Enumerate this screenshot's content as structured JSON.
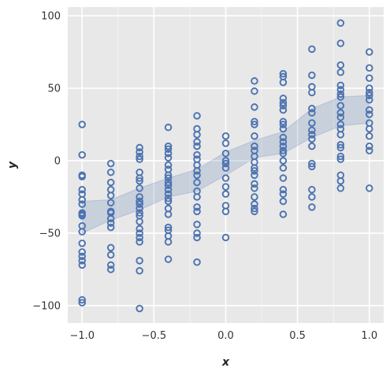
{
  "chart_data": {
    "type": "scatter",
    "title": "",
    "xlabel": "x",
    "ylabel": "y",
    "xlim": [
      -1.1,
      1.1
    ],
    "ylim": [
      -112,
      106
    ],
    "xticks": [
      -1.0,
      -0.5,
      0.0,
      0.5,
      1.0
    ],
    "xtick_labels": [
      "−1.0",
      "−0.5",
      "0.0",
      "0.5",
      "1.0"
    ],
    "yticks": [
      -100,
      -50,
      0,
      50,
      100
    ],
    "ytick_labels": [
      "−100",
      "−50",
      "0",
      "50",
      "100"
    ],
    "grid": true,
    "background": "#e8e8e8",
    "marker_color": "#4c72b0",
    "band_color": "#4c72b0",
    "series": [
      {
        "points": [
          {
            "x": -1.0,
            "ys": [
              25,
              4,
              -10,
              -11,
              -20,
              -23,
              -27,
              -30,
              -36,
              -37,
              -38,
              -45,
              -49,
              -57,
              -63,
              -66,
              -69,
              -72,
              -96,
              -98
            ]
          },
          {
            "x": -0.8,
            "ys": [
              -2,
              -8,
              -15,
              -20,
              -24,
              -29,
              -35,
              -36,
              -40,
              -43,
              -46,
              -60,
              -65,
              -72,
              -75
            ]
          },
          {
            "x": -0.6,
            "ys": [
              9,
              6,
              3,
              1,
              -8,
              -12,
              -14,
              -19,
              -25,
              -28,
              -30,
              -33,
              -36,
              -38,
              -42,
              -47,
              -50,
              -53,
              -56,
              -69,
              -76,
              -102
            ]
          },
          {
            "x": -0.4,
            "ys": [
              23,
              10,
              8,
              5,
              2,
              -3,
              -6,
              -10,
              -12,
              -15,
              -17,
              -20,
              -23,
              -26,
              -28,
              -33,
              -37,
              -46,
              -48,
              -52,
              -56,
              -68
            ]
          },
          {
            "x": -0.2,
            "ys": [
              31,
              22,
              18,
              13,
              10,
              4,
              1,
              -3,
              -7,
              -10,
              -15,
              -21,
              -25,
              -32,
              -35,
              -44,
              -50,
              -53,
              -70
            ]
          },
          {
            "x": 0.0,
            "ys": [
              17,
              12,
              5,
              0,
              -2,
              -5,
              -12,
              -18,
              -23,
              -31,
              -35,
              -53
            ]
          },
          {
            "x": 0.2,
            "ys": [
              55,
              48,
              37,
              27,
              25,
              17,
              10,
              7,
              3,
              -1,
              -5,
              -7,
              -10,
              -16,
              -19,
              -25,
              -30,
              -33,
              -35
            ]
          },
          {
            "x": 0.4,
            "ys": [
              60,
              58,
              54,
              43,
              40,
              38,
              35,
              27,
              25,
              22,
              16,
              13,
              10,
              7,
              5,
              0,
              -5,
              -12,
              -20,
              -23,
              -28,
              -37
            ]
          },
          {
            "x": 0.6,
            "ys": [
              77,
              59,
              51,
              47,
              36,
              33,
              26,
              21,
              18,
              15,
              10,
              -2,
              -4,
              -20,
              -25,
              -32
            ]
          },
          {
            "x": 0.8,
            "ys": [
              95,
              81,
              66,
              61,
              52,
              49,
              46,
              44,
              38,
              33,
              30,
              25,
              22,
              18,
              11,
              9,
              3,
              1,
              -10,
              -14,
              -19
            ]
          },
          {
            "x": 1.0,
            "ys": [
              75,
              64,
              57,
              50,
              47,
              45,
              42,
              35,
              32,
              26,
              22,
              17,
              10,
              7,
              -19
            ]
          }
        ]
      }
    ],
    "confidence_band": {
      "x": [
        -1.0,
        -0.8,
        -0.6,
        -0.4,
        -0.2,
        0.0,
        0.2,
        0.4,
        0.6,
        0.8,
        1.0
      ],
      "lower": [
        -50,
        -41,
        -34,
        -25,
        -21,
        -10,
        2,
        5,
        16,
        24,
        26
      ],
      "upper": [
        -28,
        -27,
        -19,
        -12,
        -6,
        6,
        14,
        20,
        36,
        44,
        45
      ]
    }
  }
}
